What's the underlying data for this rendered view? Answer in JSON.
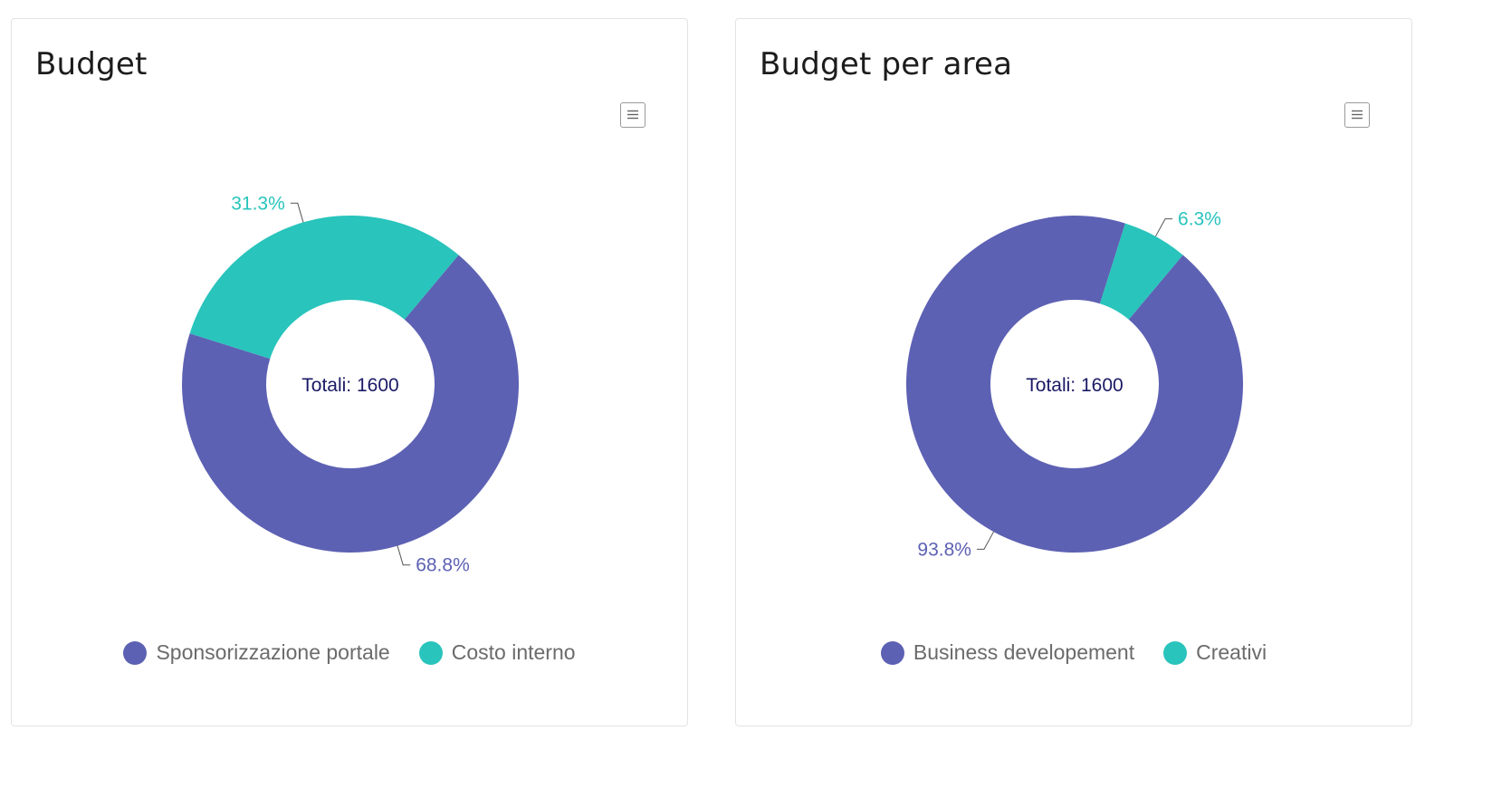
{
  "chart_data": [
    {
      "type": "pie",
      "donut": true,
      "title": "Budget",
      "center_label": "Totali: 1600",
      "series": [
        {
          "name": "Sponsorizzazione portale",
          "value": 1100,
          "percent_label": "68.8%",
          "color": "#5d61b3"
        },
        {
          "name": "Costo interno",
          "value": 500,
          "percent_label": "31.3%",
          "color": "#29c4bc"
        }
      ],
      "legend_position": "bottom"
    },
    {
      "type": "pie",
      "donut": true,
      "title": "Budget per area",
      "center_label": "Totali: 1600",
      "series": [
        {
          "name": "Business developement",
          "value": 1500,
          "percent_label": "93.8%",
          "color": "#5d61b3"
        },
        {
          "name": "Creativi",
          "value": 100,
          "percent_label": "6.3%",
          "color": "#29c4bc"
        }
      ],
      "legend_position": "bottom"
    }
  ],
  "icons": {
    "menu": "hamburger-menu-icon"
  },
  "colors": {
    "center_text": "#1a1a66",
    "leader_line": "#555555"
  }
}
